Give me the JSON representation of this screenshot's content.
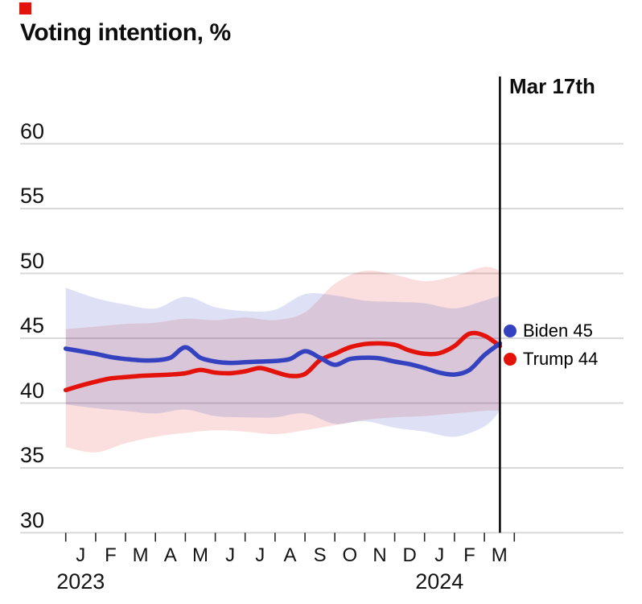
{
  "brand_color": "#E3120B",
  "title": "Voting intention, %",
  "annotation": {
    "label": "Mar 17th",
    "month_index": 14.52
  },
  "legend": [
    {
      "id": "biden",
      "label": "Biden 45",
      "color": "#3442C0"
    },
    {
      "id": "trump",
      "label": "Trump 44",
      "color": "#E3120B"
    }
  ],
  "y_axis": {
    "ticks": [
      30,
      35,
      40,
      45,
      50,
      55,
      60
    ]
  },
  "x_axis": {
    "month_labels": [
      "J",
      "F",
      "M",
      "A",
      "M",
      "J",
      "J",
      "A",
      "S",
      "O",
      "N",
      "D",
      "J",
      "F",
      "M"
    ],
    "year_labels": [
      {
        "label": "2023",
        "month_index": 0.5
      },
      {
        "label": "2024",
        "month_index": 12.5
      }
    ]
  },
  "chart_data": {
    "type": "line",
    "title": "Voting intention, %",
    "xlabel": "",
    "ylabel": "Voting intention, %",
    "ylim": [
      30,
      60
    ],
    "grid": "horizontal",
    "x_unit": "months since Jan 2023",
    "x_line": [
      0,
      0.5,
      1,
      1.5,
      2,
      2.5,
      3,
      3.5,
      4,
      4.5,
      5,
      5.5,
      6,
      6.5,
      7,
      7.5,
      8,
      8.5,
      9,
      9.5,
      10,
      10.5,
      11,
      11.5,
      12,
      12.5,
      13,
      13.5,
      14,
      14.52
    ],
    "series": [
      {
        "name": "Biden",
        "color": "#3442C0",
        "end_label_value": 45,
        "values": [
          44.2,
          44.0,
          43.8,
          43.55,
          43.4,
          43.3,
          43.3,
          43.5,
          44.3,
          43.5,
          43.2,
          43.1,
          43.15,
          43.2,
          43.25,
          43.4,
          44.0,
          43.5,
          42.95,
          43.4,
          43.5,
          43.45,
          43.2,
          43.0,
          42.7,
          42.35,
          42.2,
          42.55,
          43.7,
          44.6
        ]
      },
      {
        "name": "Trump",
        "color": "#E3120B",
        "end_label_value": 44,
        "values": [
          41.0,
          41.35,
          41.65,
          41.9,
          42.0,
          42.1,
          42.15,
          42.2,
          42.3,
          42.55,
          42.35,
          42.3,
          42.45,
          42.7,
          42.4,
          42.1,
          42.25,
          43.3,
          43.8,
          44.3,
          44.55,
          44.6,
          44.5,
          44.05,
          43.8,
          43.85,
          44.4,
          45.35,
          45.2,
          44.4
        ]
      }
    ],
    "x_band": [
      0,
      1,
      2,
      3,
      4,
      5,
      6,
      7,
      8,
      9,
      10,
      11,
      12,
      13,
      14,
      14.52
    ],
    "bands": [
      {
        "name": "Biden uncertainty band",
        "color": "#3442C0",
        "opacity": 0.16,
        "top": [
          48.9,
          48.1,
          47.6,
          47.3,
          48.2,
          47.4,
          47.1,
          47.2,
          48.4,
          48.3,
          47.9,
          47.8,
          47.7,
          47.3,
          47.9,
          48.3
        ],
        "bottom": [
          39.9,
          39.6,
          39.4,
          39.2,
          39.5,
          39.0,
          38.9,
          38.9,
          39.2,
          38.4,
          38.6,
          38.1,
          37.8,
          37.4,
          38.2,
          39.4
        ]
      },
      {
        "name": "Trump uncertainty band",
        "color": "#E3120B",
        "opacity": 0.135,
        "top": [
          45.7,
          45.9,
          46.1,
          46.2,
          46.5,
          46.4,
          46.6,
          46.4,
          47.0,
          49.2,
          50.2,
          49.9,
          49.4,
          49.8,
          50.5,
          50.2
        ],
        "bottom": [
          36.6,
          36.2,
          36.9,
          37.4,
          37.7,
          37.9,
          37.8,
          37.6,
          37.9,
          38.3,
          38.7,
          38.9,
          39.0,
          39.2,
          39.4,
          39.4
        ]
      }
    ],
    "annotation_line": {
      "label": "Mar 17th",
      "month_index": 14.52
    },
    "gridline_color": "#D8D8D8",
    "tick_color": "#262626"
  }
}
